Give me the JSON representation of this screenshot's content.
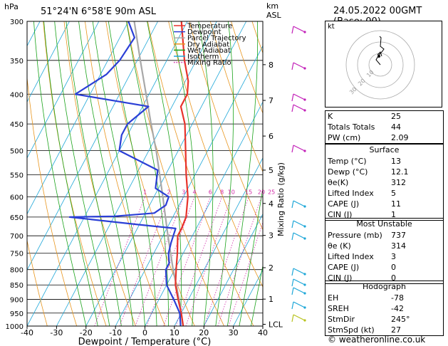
{
  "header": {
    "location": "51°24'N  6°58'E  90m  ASL",
    "datetime": "24.05.2022  00GMT  (Base: 00)",
    "pressure_unit": "hPa",
    "height_unit_top": "km",
    "height_unit_bottom": "ASL"
  },
  "chart_data": {
    "type": "line",
    "xlabel": "Dewpoint / Temperature (°C)",
    "ylabel": "",
    "right_axis_label": "Mixing Ratio (g/kg)",
    "x_ticks": [
      -40,
      -30,
      -20,
      -10,
      0,
      10,
      20,
      30,
      40
    ],
    "pressure_levels": [
      300,
      350,
      400,
      450,
      500,
      550,
      600,
      650,
      700,
      750,
      800,
      850,
      900,
      950,
      1000
    ],
    "height_km_ticks": [
      {
        "label": "8",
        "p": 356
      },
      {
        "label": "7",
        "p": 410
      },
      {
        "label": "6",
        "p": 472
      },
      {
        "label": "5",
        "p": 540
      },
      {
        "label": "4",
        "p": 616
      },
      {
        "label": "3",
        "p": 699
      },
      {
        "label": "2",
        "p": 794
      },
      {
        "label": "1",
        "p": 899
      },
      {
        "label": "LCL",
        "p": 993
      }
    ],
    "mixing_ratio_labels": [
      "1",
      "2",
      "3",
      "4",
      "6",
      "8",
      "10",
      "15",
      "20",
      "25"
    ],
    "legend": [
      "Temperature",
      "Dewpoint",
      "Parcel Trajectory",
      "Dry Adiabat",
      "Wet Adiabat",
      "Isotherm",
      "Mixing Ratio"
    ],
    "colors": {
      "temperature": "#e8332b",
      "dewpoint": "#2b3fd6",
      "parcel": "#a8a8a8",
      "dry_adiabat": "#e8951d",
      "wet_adiabat": "#1aa31a",
      "isotherm": "#1ea7d8",
      "mixing_ratio": "#d22aa8"
    },
    "series": [
      {
        "name": "Temperature",
        "points": [
          [
            1000,
            13
          ],
          [
            950,
            10
          ],
          [
            900,
            6.5
          ],
          [
            850,
            3
          ],
          [
            800,
            0.5
          ],
          [
            750,
            -2
          ],
          [
            700,
            -5
          ],
          [
            680,
            -5
          ],
          [
            650,
            -5.5
          ],
          [
            600,
            -8.5
          ],
          [
            550,
            -13
          ],
          [
            500,
            -17.5
          ],
          [
            450,
            -22.5
          ],
          [
            420,
            -27
          ],
          [
            400,
            -27
          ],
          [
            380,
            -29
          ],
          [
            350,
            -34
          ],
          [
            300,
            -42
          ]
        ]
      },
      {
        "name": "Dewpoint",
        "points": [
          [
            1000,
            12.1
          ],
          [
            950,
            9.5
          ],
          [
            900,
            5
          ],
          [
            850,
            0
          ],
          [
            800,
            -3
          ],
          [
            780,
            -3
          ],
          [
            750,
            -5
          ],
          [
            720,
            -6
          ],
          [
            700,
            -6.5
          ],
          [
            680,
            -7
          ],
          [
            670,
            -20
          ],
          [
            650,
            -45
          ],
          [
            648,
            -30
          ],
          [
            640,
            -17
          ],
          [
            620,
            -14.5
          ],
          [
            600,
            -15
          ],
          [
            580,
            -21
          ],
          [
            540,
            -23.5
          ],
          [
            500,
            -40
          ],
          [
            470,
            -42
          ],
          [
            450,
            -42
          ],
          [
            420,
            -38
          ],
          [
            400,
            -65
          ],
          [
            370,
            -58
          ],
          [
            350,
            -56
          ],
          [
            320,
            -55
          ],
          [
            300,
            -60
          ]
        ]
      },
      {
        "name": "Parcel Trajectory",
        "points": [
          [
            1000,
            13
          ],
          [
            990,
            12.3
          ],
          [
            950,
            10
          ],
          [
            900,
            6.8
          ],
          [
            850,
            3.3
          ],
          [
            800,
            -0.5
          ],
          [
            750,
            -4.3
          ],
          [
            700,
            -8.3
          ],
          [
            650,
            -12.5
          ],
          [
            600,
            -17
          ],
          [
            550,
            -22
          ],
          [
            500,
            -27.5
          ],
          [
            450,
            -34
          ],
          [
            400,
            -41
          ],
          [
            350,
            -49
          ],
          [
            300,
            -58
          ]
        ]
      }
    ]
  },
  "hodograph": {
    "label": "kt",
    "rings": [
      "10",
      "20",
      "30"
    ]
  },
  "indices": [
    {
      "label": "K",
      "value": "25"
    },
    {
      "label": "Totals Totals",
      "value": "44"
    },
    {
      "label": "PW (cm)",
      "value": "2.09"
    }
  ],
  "surface": {
    "title": "Surface",
    "rows": [
      {
        "label": "Temp (°C)",
        "value": "13"
      },
      {
        "label": "Dewp (°C)",
        "value": "12.1"
      },
      {
        "label": "θe(K)",
        "value": "312"
      },
      {
        "label": "Lifted Index",
        "value": "5"
      },
      {
        "label": "CAPE (J)",
        "value": "11"
      },
      {
        "label": "CIN (J)",
        "value": "1"
      }
    ]
  },
  "most_unstable": {
    "title": "Most Unstable",
    "rows": [
      {
        "label": "Pressure (mb)",
        "value": "737"
      },
      {
        "label": "θe (K)",
        "value": "314"
      },
      {
        "label": "Lifted Index",
        "value": "3"
      },
      {
        "label": "CAPE (J)",
        "value": "0"
      },
      {
        "label": "CIN (J)",
        "value": "0"
      }
    ]
  },
  "hodograph_table": {
    "title": "Hodograph",
    "rows": [
      {
        "label": "EH",
        "value": "-78"
      },
      {
        "label": "SREH",
        "value": "-42"
      },
      {
        "label": "StmDir",
        "value": "245°"
      },
      {
        "label": "StmSpd (kt)",
        "value": "27"
      }
    ]
  },
  "footer": "© weatheronline.co.uk"
}
